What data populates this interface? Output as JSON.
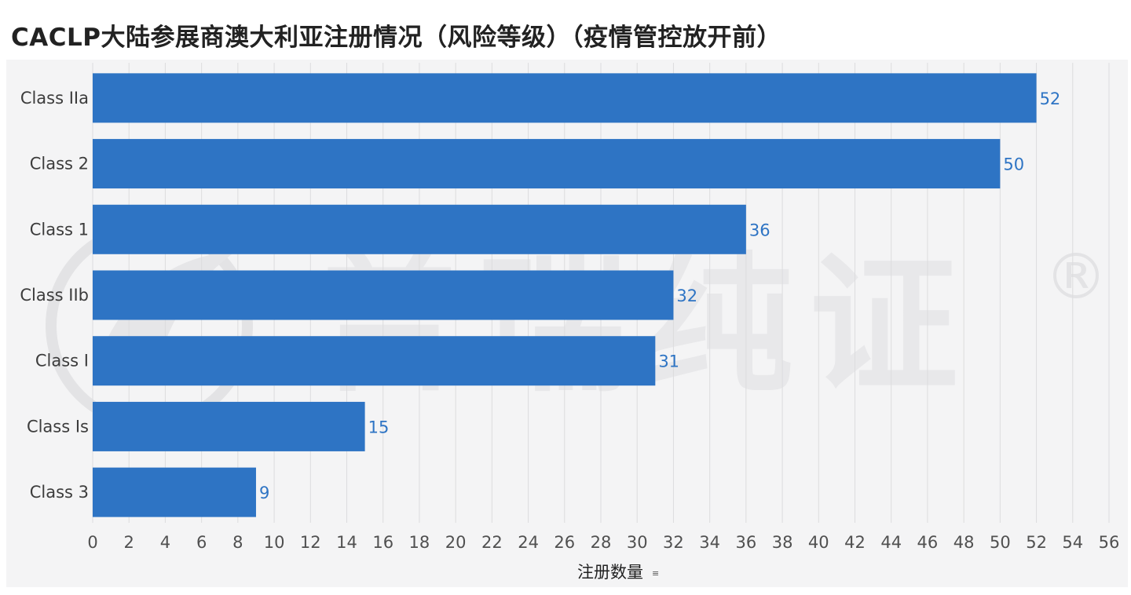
{
  "title": "CACLP大陆参展商澳大利亚注册情况（风险等级）（疫情管控放开前）",
  "watermark": {
    "text": "普瑞纯证",
    "mark": "®"
  },
  "chart_data": {
    "type": "bar",
    "orientation": "horizontal",
    "categories": [
      "Class IIa",
      "Class 2",
      "Class 1",
      "Class IIb",
      "Class I",
      "Class Is",
      "Class 3"
    ],
    "values": [
      52,
      50,
      36,
      32,
      31,
      15,
      9
    ],
    "xlabel": "注册数量",
    "xlim": [
      0,
      56
    ],
    "xticks": [
      0,
      2,
      4,
      6,
      8,
      10,
      12,
      14,
      16,
      18,
      20,
      22,
      24,
      26,
      28,
      30,
      32,
      34,
      36,
      38,
      40,
      42,
      44,
      46,
      48,
      50,
      52,
      54,
      56
    ],
    "grid": "vertical",
    "data_labels": true,
    "bar_color": "#2e74c4",
    "label_color": "#2e74c4"
  }
}
